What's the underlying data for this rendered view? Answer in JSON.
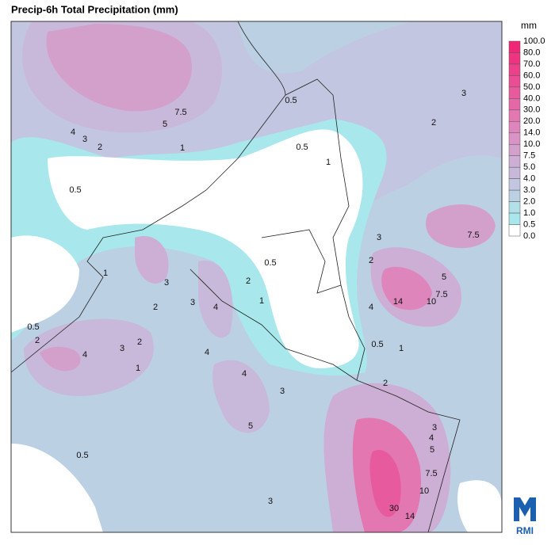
{
  "title": "Precip-6h Total Precipitation (mm)",
  "legend": {
    "unit": "mm",
    "labels": [
      "100.0",
      "80.0",
      "70.0",
      "60.0",
      "50.0",
      "40.0",
      "30.0",
      "20.0",
      "14.0",
      "10.0",
      "7.5",
      "5.0",
      "4.0",
      "3.0",
      "2.0",
      "1.0",
      "0.5",
      "0.0"
    ],
    "colors": [
      "#f02676",
      "#ee3380",
      "#ec408a",
      "#ea4d94",
      "#e75b9e",
      "#e468a8",
      "#e277b2",
      "#de85bc",
      "#d993c4",
      "#d3a0cc",
      "#cdaed4",
      "#c8b9da",
      "#c3c6e0",
      "#bcd0e4",
      "#b3dfe8",
      "#a8e8ec",
      "#ffffff"
    ]
  },
  "contour_labels": [
    "7.5",
    "5",
    "4",
    "3",
    "2",
    "1",
    "0.5",
    "0.5",
    "0.5",
    "1",
    "2",
    "3",
    "7.5",
    "3",
    "2",
    "5",
    "7.5",
    "14",
    "10",
    "4",
    "0.5",
    "1",
    "0.5",
    "2",
    "1",
    "3",
    "3",
    "4",
    "2",
    "1",
    "0.5",
    "2",
    "4",
    "3",
    "2",
    "1",
    "4",
    "4",
    "3",
    "5",
    "2",
    "3",
    "4",
    "5",
    "7.5",
    "10",
    "14",
    "30",
    "3",
    "0.5"
  ],
  "logo": "RMI"
}
